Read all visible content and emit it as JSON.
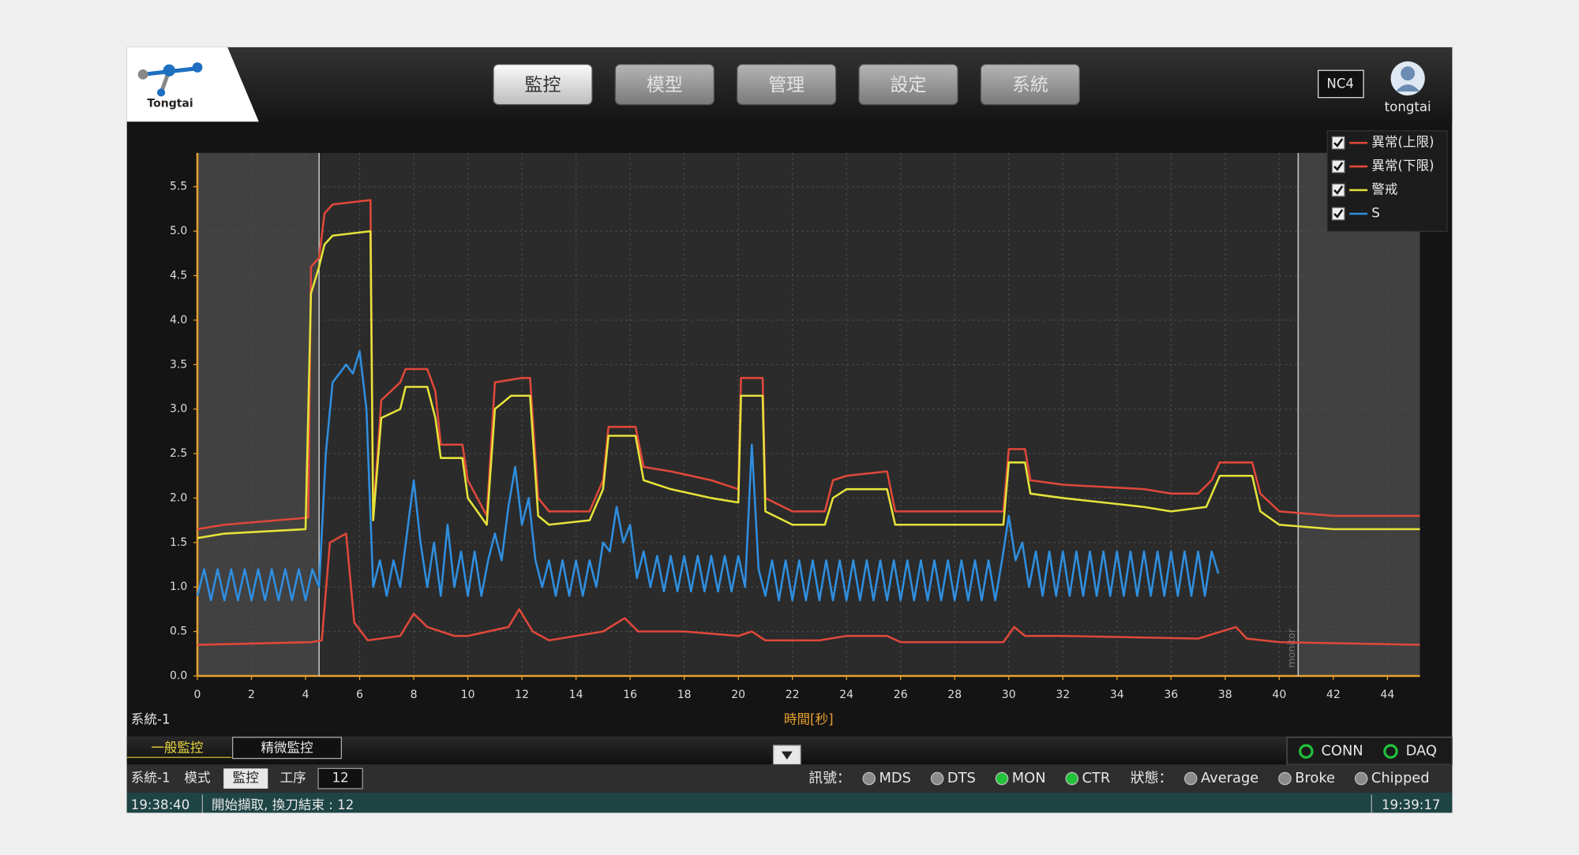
{
  "header": {
    "logo": "Tongtai",
    "nav": [
      "監控",
      "模型",
      "管理",
      "設定",
      "系統"
    ],
    "machine": "NC4",
    "user": "tongtai"
  },
  "chart_data": {
    "type": "line",
    "panel_label": "系統-1",
    "x_label": "時間[秒]",
    "xlim": [
      0,
      45.2
    ],
    "ylim": [
      0,
      5.88
    ],
    "xticks": [
      0,
      2,
      4,
      6,
      8,
      10,
      12,
      14,
      16,
      18,
      20,
      22,
      24,
      26,
      28,
      30,
      32,
      34,
      36,
      38,
      40,
      42,
      44
    ],
    "yticks": [
      {
        "value": 0,
        "label": "0.0"
      },
      0.5,
      {
        "value": 1,
        "label": "1.0"
      },
      1.5,
      {
        "value": 2,
        "label": "2.0"
      },
      2.5,
      {
        "value": 3,
        "label": "3.0"
      },
      3.5,
      {
        "value": 4,
        "label": "4.0"
      },
      4.5,
      {
        "value": 5,
        "label": "5.0"
      },
      5.5
    ],
    "grid": true,
    "legend": "top-right",
    "shaded": [
      [
        0,
        4.5
      ],
      [
        40.7,
        45.2
      ]
    ],
    "vlines": [
      4.5,
      40.7
    ],
    "annotation": "monitor",
    "series": [
      {
        "name": "異常(上限)",
        "color": "#e0483a",
        "x": [
          0,
          1,
          4.1,
          4.2,
          4.5,
          4.7,
          5,
          6.4,
          6.5,
          6.8,
          7.5,
          7.7,
          8.5,
          8.8,
          9,
          9.8,
          10,
          10.7,
          11,
          12,
          12.3,
          12.6,
          13,
          14.5,
          15,
          15.2,
          16.2,
          16.5,
          17.5,
          19,
          20,
          20.1,
          20.9,
          21,
          22,
          23.2,
          23.5,
          24,
          25.5,
          25.8,
          29.8,
          30,
          30.6,
          30.8,
          32,
          35,
          36,
          37,
          37.5,
          37.8,
          39,
          39.3,
          40,
          42,
          45.2
        ],
        "values": [
          1.65,
          1.7,
          1.78,
          4.6,
          4.7,
          5.2,
          5.3,
          5.35,
          1.8,
          3.1,
          3.3,
          3.45,
          3.45,
          3.2,
          2.6,
          2.6,
          2.2,
          1.8,
          3.3,
          3.35,
          3.35,
          2.0,
          1.85,
          1.85,
          2.2,
          2.8,
          2.8,
          2.35,
          2.3,
          2.2,
          2.1,
          3.35,
          3.35,
          2.0,
          1.85,
          1.85,
          2.2,
          2.25,
          2.3,
          1.85,
          1.85,
          2.55,
          2.55,
          2.2,
          2.15,
          2.1,
          2.05,
          2.05,
          2.2,
          2.4,
          2.4,
          2.05,
          1.85,
          1.8,
          1.8
        ]
      },
      {
        "name": "異常(下限)",
        "color": "#e0483a",
        "x": [
          0,
          4.2,
          4.6,
          4.9,
          5.5,
          5.8,
          6.3,
          7.5,
          8,
          8.5,
          9.5,
          10,
          11.5,
          11.9,
          12.4,
          13,
          15,
          15.8,
          16.3,
          18,
          20,
          20.5,
          21,
          23,
          24,
          25.5,
          26,
          29.8,
          30.2,
          30.6,
          32,
          37,
          38.4,
          38.8,
          40,
          45.2
        ],
        "values": [
          0.35,
          0.38,
          0.4,
          1.5,
          1.6,
          0.6,
          0.4,
          0.45,
          0.7,
          0.55,
          0.45,
          0.45,
          0.55,
          0.75,
          0.5,
          0.4,
          0.5,
          0.65,
          0.5,
          0.5,
          0.45,
          0.5,
          0.4,
          0.4,
          0.45,
          0.45,
          0.38,
          0.38,
          0.55,
          0.45,
          0.45,
          0.42,
          0.55,
          0.42,
          0.38,
          0.35
        ]
      },
      {
        "name": "警戒",
        "color": "#e6e33a",
        "x": [
          0,
          1,
          4,
          4.2,
          4.5,
          4.7,
          5,
          6.4,
          6.5,
          6.8,
          7.5,
          7.7,
          8.5,
          8.8,
          9,
          9.8,
          10,
          10.7,
          11,
          11.6,
          12.3,
          12.6,
          13,
          14.5,
          15,
          15.2,
          16.2,
          16.5,
          17.5,
          19,
          20,
          20.1,
          20.9,
          21,
          22,
          23.2,
          23.5,
          24,
          25.5,
          25.8,
          29.8,
          30,
          30.6,
          30.8,
          32,
          35,
          36,
          37.3,
          37.8,
          39,
          39.3,
          40,
          42,
          45.2
        ],
        "values": [
          1.55,
          1.6,
          1.65,
          4.3,
          4.6,
          4.85,
          4.95,
          5.0,
          1.75,
          2.9,
          3.0,
          3.25,
          3.25,
          2.9,
          2.45,
          2.45,
          2.0,
          1.7,
          3.0,
          3.15,
          3.15,
          1.8,
          1.7,
          1.75,
          2.1,
          2.7,
          2.7,
          2.2,
          2.1,
          2.0,
          1.95,
          3.15,
          3.15,
          1.85,
          1.7,
          1.7,
          2.0,
          2.1,
          2.1,
          1.7,
          1.7,
          2.4,
          2.4,
          2.05,
          2.0,
          1.9,
          1.85,
          1.9,
          2.25,
          2.25,
          1.85,
          1.7,
          1.65,
          1.65
        ]
      },
      {
        "name": "S",
        "color": "#2f8fe0",
        "x": [
          0,
          0.25,
          0.5,
          0.75,
          1,
          1.25,
          1.5,
          1.75,
          2,
          2.25,
          2.5,
          2.75,
          3,
          3.25,
          3.5,
          3.75,
          4,
          4.25,
          4.5,
          4.75,
          5,
          5.25,
          5.5,
          5.75,
          6,
          6.25,
          6.5,
          6.75,
          7,
          7.25,
          7.5,
          7.75,
          8,
          8.25,
          8.5,
          8.75,
          9,
          9.25,
          9.5,
          9.75,
          10,
          10.25,
          10.5,
          10.75,
          11,
          11.25,
          11.5,
          11.75,
          12,
          12.25,
          12.5,
          12.75,
          13,
          13.25,
          13.5,
          13.75,
          14,
          14.25,
          14.5,
          14.75,
          15,
          15.25,
          15.5,
          15.75,
          16,
          16.25,
          16.5,
          16.75,
          17,
          17.25,
          17.5,
          17.75,
          18,
          18.25,
          18.5,
          18.75,
          19,
          19.25,
          19.5,
          19.75,
          20,
          20.25,
          20.5,
          20.75,
          21,
          21.25,
          21.5,
          21.75,
          22,
          22.25,
          22.5,
          22.75,
          23,
          23.25,
          23.5,
          23.75,
          24,
          24.25,
          24.5,
          24.75,
          25,
          25.25,
          25.5,
          25.75,
          26,
          26.25,
          26.5,
          26.75,
          27,
          27.25,
          27.5,
          27.75,
          28,
          28.25,
          28.5,
          28.75,
          29,
          29.25,
          29.5,
          29.75,
          30,
          30.25,
          30.5,
          30.75,
          31,
          31.25,
          31.5,
          31.75,
          32,
          32.25,
          32.5,
          32.75,
          33,
          33.25,
          33.5,
          33.75,
          34,
          34.25,
          34.5,
          34.75,
          35,
          35.25,
          35.5,
          35.75,
          36,
          36.25,
          36.5,
          36.75,
          37,
          37.25,
          37.5,
          37.75
        ],
        "values": [
          0.9,
          1.2,
          0.85,
          1.2,
          0.85,
          1.2,
          0.85,
          1.2,
          0.85,
          1.2,
          0.85,
          1.2,
          0.85,
          1.2,
          0.85,
          1.2,
          0.85,
          1.2,
          1.0,
          2.5,
          3.3,
          3.4,
          3.5,
          3.4,
          3.65,
          3.0,
          1.0,
          1.3,
          0.9,
          1.3,
          1.0,
          1.6,
          2.2,
          1.5,
          1.0,
          1.5,
          0.9,
          1.7,
          1.0,
          1.4,
          0.9,
          1.4,
          0.9,
          1.3,
          1.6,
          1.3,
          1.9,
          2.35,
          1.7,
          2.0,
          1.3,
          1.0,
          1.3,
          0.9,
          1.3,
          0.9,
          1.3,
          0.9,
          1.3,
          1.0,
          1.5,
          1.4,
          1.9,
          1.5,
          1.7,
          1.1,
          1.4,
          1.0,
          1.35,
          0.95,
          1.35,
          0.95,
          1.35,
          0.95,
          1.35,
          0.95,
          1.35,
          0.95,
          1.35,
          0.95,
          1.35,
          1.0,
          2.6,
          1.2,
          0.9,
          1.3,
          0.85,
          1.3,
          0.85,
          1.3,
          0.85,
          1.3,
          0.85,
          1.3,
          0.85,
          1.3,
          0.85,
          1.3,
          0.85,
          1.3,
          0.85,
          1.3,
          0.85,
          1.3,
          0.85,
          1.3,
          0.85,
          1.3,
          0.85,
          1.3,
          0.85,
          1.3,
          0.85,
          1.3,
          0.85,
          1.3,
          0.85,
          1.3,
          0.85,
          1.3,
          1.8,
          1.3,
          1.5,
          1.0,
          1.4,
          0.9,
          1.4,
          0.9,
          1.4,
          0.9,
          1.4,
          0.9,
          1.4,
          0.9,
          1.4,
          0.9,
          1.4,
          0.9,
          1.4,
          0.9,
          1.4,
          0.9,
          1.4,
          0.9,
          1.4,
          0.9,
          1.4,
          0.9,
          1.4,
          0.9,
          1.4,
          1.15
        ]
      }
    ]
  },
  "tabs": [
    "一般監控",
    "精微監控"
  ],
  "connections": [
    {
      "name": "CONN",
      "color": "#22c23a"
    },
    {
      "name": "DAQ",
      "color": "#22c23a"
    }
  ],
  "status_row": {
    "system": "系統-1",
    "mode_label": "模式",
    "mode": "監控",
    "step_label": "工序",
    "step": 12,
    "signal_label": "訊號：",
    "signals": [
      {
        "name": "MDS",
        "color": "#8a8a8a"
      },
      {
        "name": "DTS",
        "color": "#8a8a8a"
      },
      {
        "name": "MON",
        "color": "#22c23a"
      },
      {
        "name": "CTR",
        "color": "#22c23a"
      }
    ],
    "state_label": "狀態：",
    "states": [
      {
        "name": "Average",
        "color": "#8a8a8a"
      },
      {
        "name": "Broke",
        "color": "#8a8a8a"
      },
      {
        "name": "Chipped",
        "color": "#8a8a8a"
      }
    ]
  },
  "status_bar": {
    "start_time": "19:38:40",
    "message": "開始擷取, 換刀結束 : 12",
    "end_time": "19:39:17"
  }
}
